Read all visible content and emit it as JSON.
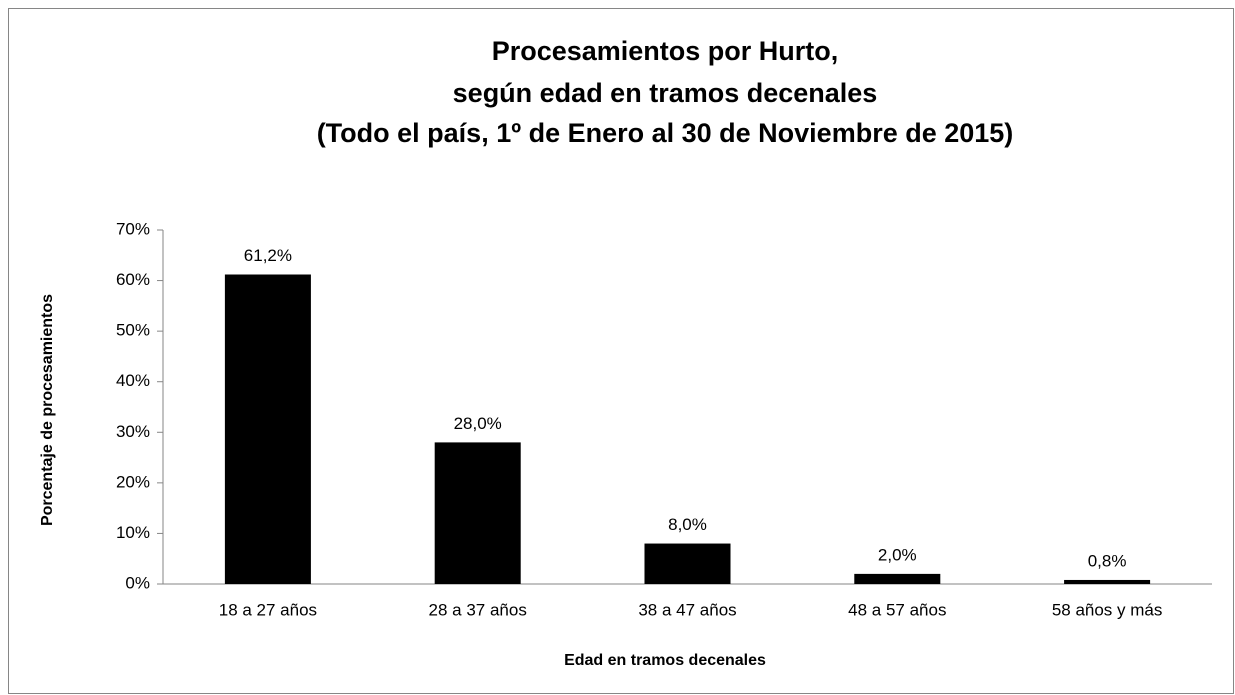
{
  "chart_data": {
    "type": "bar",
    "title": [
      "Procesamientos por Hurto,",
      "según edad en tramos decenales",
      "(Todo el país, 1º de Enero al 30 de Noviembre de 2015)"
    ],
    "x_label": "Edad en tramos decenales",
    "y_label": "Porcentaje de procesamientos",
    "categories": [
      "18 a 27 años",
      "28 a 37 años",
      "38 a 47 años",
      "48 a 57 años",
      "58 años y más"
    ],
    "values": [
      61.2,
      28.0,
      8.0,
      2.0,
      0.8
    ],
    "value_labels": [
      "61,2%",
      "28,0%",
      "8,0%",
      "2,0%",
      "0,8%"
    ],
    "color": "#000000",
    "ylim": [
      0,
      70
    ],
    "yticks": [
      {
        "value": 0,
        "label": "0%"
      },
      {
        "value": 10,
        "label": "10%"
      },
      {
        "value": 20,
        "label": "20%"
      },
      {
        "value": 30,
        "label": "30%"
      },
      {
        "value": 40,
        "label": "40%"
      },
      {
        "value": 50,
        "label": "50%"
      },
      {
        "value": 60,
        "label": "60%"
      },
      {
        "value": 70,
        "label": "70%"
      }
    ],
    "grid": false
  }
}
